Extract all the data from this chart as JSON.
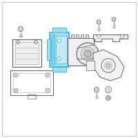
{
  "background_color": "#ffffff",
  "border_color": "#c8c8c8",
  "highlight_color": "#3bbde0",
  "highlight_fill": "#a8ddf0",
  "line_color": "#606060",
  "light_gray": "#aaaaaa",
  "dark_gray": "#707070",
  "fig_size": [
    2.0,
    2.0
  ],
  "dpi": 100
}
